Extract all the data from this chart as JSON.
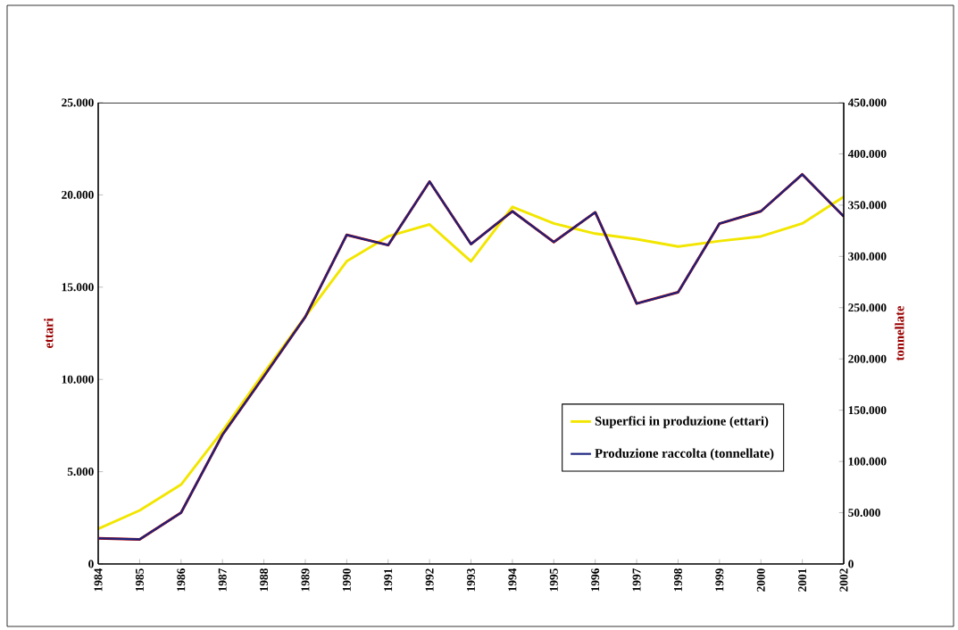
{
  "chart_data": {
    "type": "line",
    "xlabel": null,
    "ylabel": "ettari",
    "y2label": "tonnellate",
    "categories": [
      "1984",
      "1985",
      "1986",
      "1987",
      "1988",
      "1989",
      "1990",
      "1991",
      "1992",
      "1993",
      "1994",
      "1995",
      "1996",
      "1997",
      "1998",
      "1999",
      "2000",
      "2001",
      "2002"
    ],
    "series": [
      {
        "name": "Superfici in produzione (ettari)",
        "color": "#f2e600",
        "axis": "y",
        "values": [
          1900,
          2900,
          4300,
          7200,
          10350,
          13400,
          16400,
          17750,
          18400,
          16400,
          19350,
          18450,
          17900,
          17600,
          17200,
          17500,
          17750,
          18450,
          19900
        ]
      },
      {
        "name": "Produzione raccolta (tonnellate)",
        "color": "#1a237e",
        "axis": "y2",
        "values": [
          25000,
          24000,
          50000,
          126000,
          183000,
          241000,
          321000,
          311000,
          373000,
          312000,
          344000,
          314000,
          343000,
          254000,
          265000,
          332000,
          344000,
          380000,
          339000
        ]
      }
    ],
    "ylim": [
      0,
      25000
    ],
    "yticks": [
      {
        "value": 0,
        "label": "0"
      },
      {
        "value": 5000,
        "label": "5.000"
      },
      {
        "value": 10000,
        "label": "10.000"
      },
      {
        "value": 15000,
        "label": "15.000"
      },
      {
        "value": 20000,
        "label": "20.000"
      },
      {
        "value": 25000,
        "label": "25.000"
      }
    ],
    "y2lim": [
      0,
      450000
    ],
    "y2ticks": [
      {
        "value": 0,
        "label": "0"
      },
      {
        "value": 50000,
        "label": "50.000"
      },
      {
        "value": 100000,
        "label": "100.000"
      },
      {
        "value": 150000,
        "label": "150.000"
      },
      {
        "value": 200000,
        "label": "200.000"
      },
      {
        "value": 250000,
        "label": "250.000"
      },
      {
        "value": 300000,
        "label": "300.000"
      },
      {
        "value": 350000,
        "label": "350.000"
      },
      {
        "value": 400000,
        "label": "400.000"
      },
      {
        "value": 450000,
        "label": "450.000"
      }
    ],
    "legend": "bottom right",
    "marker": "none",
    "line_style": "solid"
  }
}
